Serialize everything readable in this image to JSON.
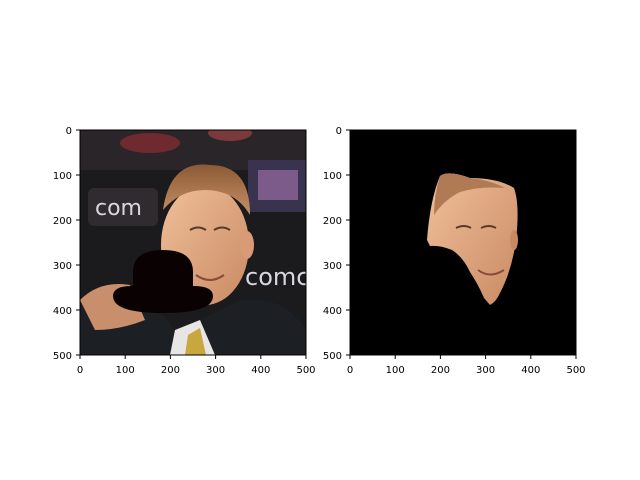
{
  "figure": {
    "background": "#ffffff",
    "axis_color": "#000000"
  },
  "panels": [
    {
      "name": "original-with-occlusion",
      "x_ticks": [
        "0",
        "100",
        "200",
        "300",
        "400",
        "500"
      ],
      "y_ticks": [
        "0",
        "100",
        "200",
        "300",
        "400",
        "500"
      ],
      "xlim": [
        0,
        500
      ],
      "ylim": [
        500,
        0
      ],
      "content": "photo of a smiling man in a suit with a black bowler-hat shaped occlusion over the lower-left part of the face",
      "occluder_color": "#0a0202"
    },
    {
      "name": "segmented-face",
      "x_ticks": [
        "0",
        "100",
        "200",
        "300",
        "400",
        "500"
      ],
      "y_ticks": [
        "0",
        "100",
        "200",
        "300",
        "400",
        "500"
      ],
      "xlim": [
        0,
        500
      ],
      "ylim": [
        500,
        0
      ],
      "content": "face region segmented on black background, occluded area removed",
      "background_color": "#000000"
    }
  ]
}
